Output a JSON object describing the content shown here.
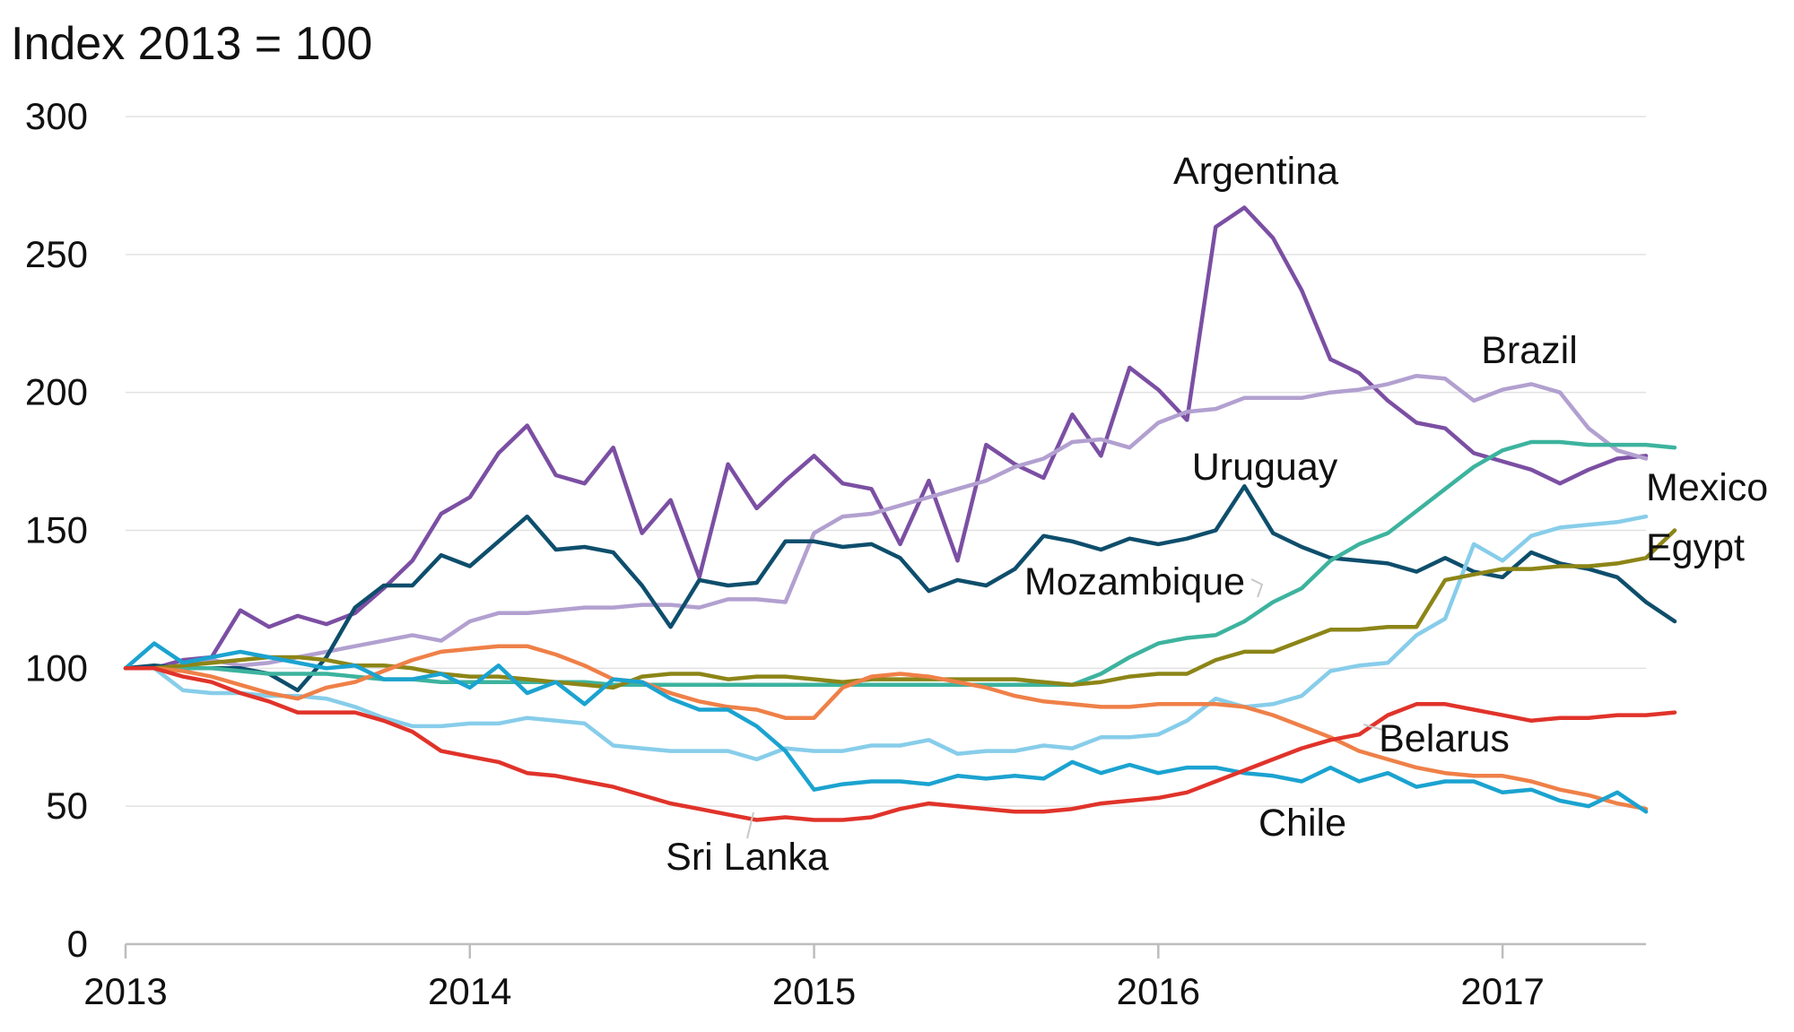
{
  "chart_data": {
    "type": "line",
    "title": "Index 2013 = 100",
    "xlabel": "",
    "ylabel": "Index 2013 = 100",
    "x_start": "2013-01",
    "x_end": "2017-06",
    "frequency": "monthly",
    "xlim": [
      0,
      53
    ],
    "ylim": [
      0,
      300
    ],
    "y_ticks": [
      "0",
      "50",
      "100",
      "150",
      "200",
      "250",
      "300"
    ],
    "y_tick_values": [
      0,
      50,
      100,
      150,
      200,
      250,
      300
    ],
    "x_ticks": [
      "2013",
      "2014",
      "2015",
      "2016",
      "2017"
    ],
    "x_tick_values": [
      0,
      12,
      24,
      36,
      48
    ],
    "grid": true,
    "legend": "direct labels on lines",
    "series": [
      {
        "name": "Argentina",
        "color": "#7b4fa3",
        "values": [
          100,
          100,
          103,
          104,
          121,
          115,
          119,
          116,
          120,
          129,
          139,
          156,
          162,
          178,
          188,
          170,
          167,
          180,
          149,
          161,
          133,
          174,
          158,
          168,
          177,
          167,
          165,
          145,
          168,
          139,
          181,
          174,
          169,
          192,
          177,
          209,
          201,
          190,
          260,
          267,
          256,
          237,
          212,
          207,
          197,
          189,
          187,
          178,
          175,
          172,
          167,
          172,
          176,
          177
        ]
      },
      {
        "name": "Brazil",
        "color": "#b2a0d0",
        "values": [
          100,
          100,
          101,
          103,
          101,
          102,
          104,
          106,
          108,
          110,
          112,
          110,
          117,
          120,
          120,
          121,
          122,
          122,
          123,
          123,
          122,
          125,
          125,
          124,
          149,
          155,
          156,
          159,
          162,
          165,
          168,
          173,
          176,
          182,
          183,
          180,
          189,
          193,
          194,
          198,
          198,
          198,
          200,
          201,
          203,
          206,
          205,
          197,
          201,
          203,
          200,
          187,
          179,
          176
        ]
      },
      {
        "name": "Uruguay",
        "color": "#0e4e6c",
        "values": [
          100,
          101,
          100,
          100,
          100,
          98,
          92,
          104,
          122,
          130,
          130,
          141,
          137,
          146,
          155,
          143,
          144,
          142,
          130,
          115,
          132,
          130,
          131,
          146,
          146,
          144,
          145,
          140,
          128,
          132,
          130,
          136,
          148,
          146,
          143,
          147,
          145,
          147,
          150,
          166,
          149,
          144,
          140,
          139,
          138,
          135,
          140,
          135,
          133,
          142,
          138,
          136,
          133,
          124,
          117
        ]
      },
      {
        "name": "Mozambique",
        "color": "#3db39e",
        "values": [
          100,
          100,
          100,
          100,
          99,
          98,
          98,
          98,
          97,
          96,
          96,
          95,
          95,
          95,
          95,
          95,
          95,
          94,
          94,
          94,
          94,
          94,
          94,
          94,
          94,
          94,
          94,
          94,
          94,
          94,
          94,
          94,
          94,
          94,
          98,
          104,
          109,
          111,
          112,
          117,
          124,
          129,
          139,
          145,
          149,
          157,
          165,
          173,
          179,
          182,
          182,
          181,
          181,
          181,
          180
        ]
      },
      {
        "name": "Mexico",
        "color": "#87cdea",
        "values": [
          100,
          100,
          92,
          91,
          91,
          90,
          90,
          89,
          86,
          82,
          79,
          79,
          80,
          80,
          82,
          81,
          80,
          72,
          71,
          70,
          70,
          70,
          67,
          71,
          70,
          70,
          72,
          72,
          74,
          69,
          70,
          70,
          72,
          71,
          75,
          75,
          76,
          81,
          89,
          86,
          87,
          90,
          99,
          101,
          102,
          112,
          118,
          145,
          139,
          148,
          151,
          152,
          153,
          155
        ]
      },
      {
        "name": "Egypt",
        "color": "#8c8517",
        "values": [
          100,
          100,
          101,
          102,
          103,
          104,
          104,
          103,
          101,
          101,
          100,
          98,
          97,
          97,
          96,
          95,
          94,
          93,
          97,
          98,
          98,
          96,
          97,
          97,
          96,
          95,
          96,
          96,
          96,
          96,
          96,
          96,
          95,
          94,
          95,
          97,
          98,
          98,
          103,
          106,
          106,
          110,
          114,
          114,
          115,
          115,
          132,
          134,
          136,
          136,
          137,
          137,
          138,
          140,
          150
        ]
      },
      {
        "name": "Belarus",
        "color": "#ef8048",
        "values": [
          100,
          100,
          99,
          97,
          94,
          91,
          89,
          93,
          95,
          99,
          103,
          106,
          107,
          108,
          108,
          105,
          101,
          96,
          95,
          91,
          88,
          86,
          85,
          82,
          82,
          93,
          97,
          98,
          97,
          95,
          93,
          90,
          88,
          87,
          86,
          86,
          87,
          87,
          87,
          86,
          83,
          79,
          75,
          70,
          67,
          64,
          62,
          61,
          61,
          59,
          56,
          54,
          51,
          49
        ]
      },
      {
        "name": "Chile",
        "color": "#1ba3d0",
        "values": [
          100,
          109,
          102,
          104,
          106,
          104,
          102,
          100,
          101,
          96,
          96,
          98,
          93,
          101,
          91,
          95,
          87,
          96,
          95,
          89,
          85,
          85,
          79,
          70,
          56,
          58,
          59,
          59,
          58,
          61,
          60,
          61,
          60,
          66,
          62,
          65,
          62,
          64,
          64,
          62,
          61,
          59,
          64,
          59,
          62,
          57,
          59,
          59,
          55,
          56,
          52,
          50,
          55,
          48
        ]
      },
      {
        "name": "Sri Lanka",
        "color": "#e0332a",
        "values": [
          100,
          100,
          97,
          95,
          91,
          88,
          84,
          84,
          84,
          81,
          77,
          70,
          68,
          66,
          62,
          61,
          59,
          57,
          54,
          51,
          49,
          47,
          45,
          46,
          45,
          45,
          46,
          49,
          51,
          50,
          49,
          48,
          48,
          49,
          51,
          52,
          53,
          55,
          59,
          63,
          67,
          71,
          74,
          76,
          83,
          87,
          87,
          85,
          83,
          81,
          82,
          82,
          83,
          83,
          84
        ]
      }
    ],
    "annotations": [
      "Argentina",
      "Brazil",
      "Uruguay",
      "Mexico",
      "Mozambique",
      "Egypt",
      "Belarus",
      "Chile",
      "Sri Lanka"
    ]
  }
}
